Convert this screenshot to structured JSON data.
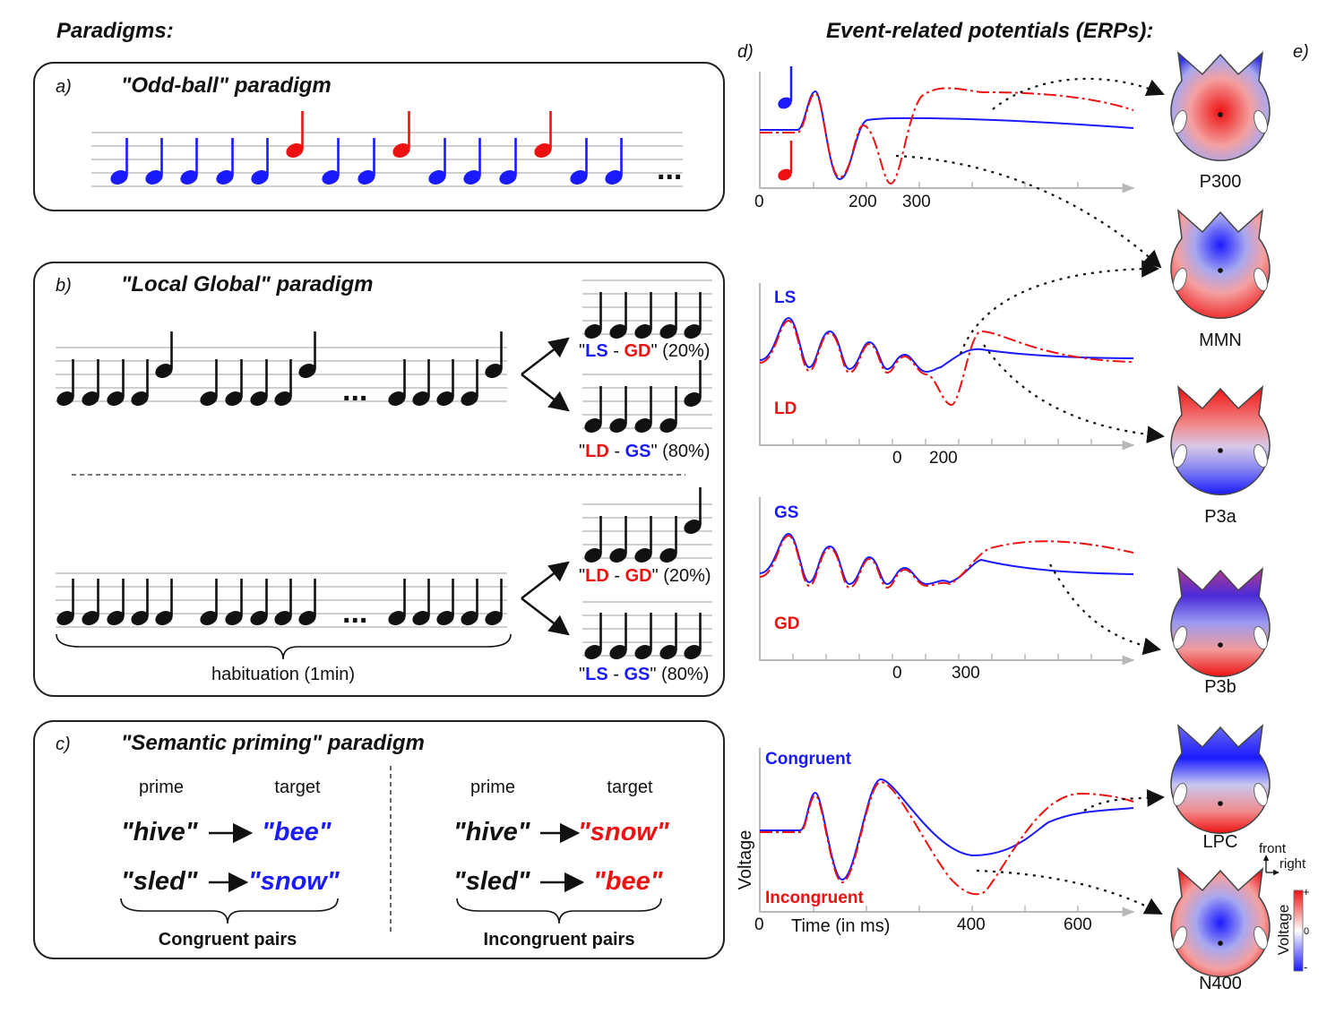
{
  "headers": {
    "paradigms": "Paradigms:",
    "erps": "Event-related potentials (ERPs):"
  },
  "panel_letters": {
    "a": "a)",
    "b": "b)",
    "c": "c)",
    "d": "d)",
    "e": "e)"
  },
  "oddball": {
    "title": "\"Odd-ball\" paradigm",
    "ellipsis": "..."
  },
  "localglobal": {
    "title": "\"Local Global\" paradigm",
    "ellipsis": "...",
    "habituation": "habituation (1min)",
    "outcomes": [
      {
        "q": "\"",
        "a": "LS",
        "dash": " - ",
        "b": "GD",
        "q2": "\"",
        "pct": " (20%)"
      },
      {
        "q": "\"",
        "a": "LD",
        "dash": " - ",
        "b": "GS",
        "q2": "\"",
        "pct": " (80%)"
      },
      {
        "q": "\"",
        "a": "LD",
        "dash": " - ",
        "b": "GD",
        "q2": "\"",
        "pct": " (20%)"
      },
      {
        "q": "\"",
        "a": "LS",
        "dash": " - ",
        "b": "GS",
        "q2": "\"",
        "pct": " (80%)"
      }
    ]
  },
  "semantic": {
    "title": "\"Semantic priming\" paradigm",
    "prime": "prime",
    "target": "target",
    "congruent": [
      {
        "prime": "\"hive\"",
        "target": "\"bee\""
      },
      {
        "prime": "\"sled\"",
        "target": "\"snow\""
      }
    ],
    "incongruent": [
      {
        "prime": "\"hive\"",
        "target": "\"snow\""
      },
      {
        "prime": "\"sled\"",
        "target": "\"bee\""
      }
    ],
    "congruent_label": "Congruent pairs",
    "incongruent_label": "Incongruent pairs"
  },
  "erp": {
    "p1_ticks": [
      "0",
      "200",
      "300"
    ],
    "p2_labels": {
      "blue": "LS",
      "red": "LD"
    },
    "p2_ticks": [
      "0",
      "200"
    ],
    "p3_labels": {
      "blue": "GS",
      "red": "GD"
    },
    "p3_ticks": [
      "0",
      "300"
    ],
    "p4_labels": {
      "blue": "Congruent",
      "red": "Incongruent"
    },
    "p4_ticks": [
      "0",
      "400",
      "600"
    ],
    "p4_xlabel": "Time (in ms)",
    "p4_ylabel": "Voltage"
  },
  "topomaps": [
    "P300",
    "MMN",
    "P3a",
    "P3b",
    "LPC",
    "N400"
  ],
  "orientation": {
    "front": "front",
    "right": "right"
  },
  "colorbar": {
    "label": "Voltage",
    "plus": "+",
    "zero": "0",
    "minus": "-"
  },
  "colors": {
    "blue": "#1a1aff",
    "red": "#ee1111",
    "dark": "#111111"
  }
}
